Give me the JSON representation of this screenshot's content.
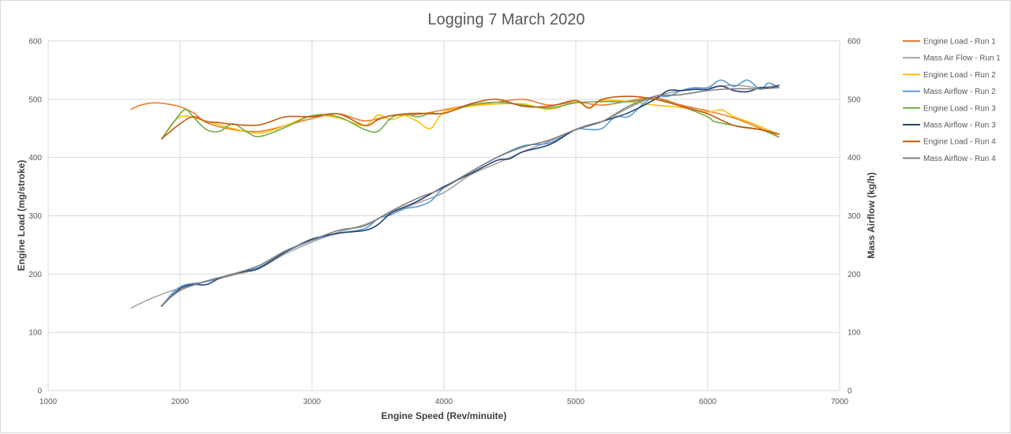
{
  "chart_data": {
    "type": "line",
    "title": "Logging 7 March 2020",
    "xlabel": "Engine Speed (Rev/minuite)",
    "ylabel": "Engine Load (mg/stroke)",
    "y2label": "Mass Airflow (kg/h)",
    "xlim": [
      1000,
      7000
    ],
    "ylim": [
      0,
      600
    ],
    "y2lim": [
      0,
      600
    ],
    "xticks": [
      "1000",
      "2000",
      "3000",
      "4000",
      "5000",
      "6000",
      "7000"
    ],
    "yticks": [
      "0",
      "100",
      "200",
      "300",
      "400",
      "500",
      "600"
    ],
    "y2ticks": [
      "0",
      "100",
      "200",
      "300",
      "400",
      "500",
      "600"
    ],
    "grid": true,
    "legend_position": "right",
    "series": [
      {
        "name": "Engine Load - Run 1",
        "color": "#ED7D31",
        "axis": "left",
        "x": [
          1630,
          1700,
          1800,
          1900,
          2000,
          2100,
          2200,
          2400,
          2600,
          2800,
          3000,
          3200,
          3400,
          3600,
          3800,
          4000,
          4200,
          4400,
          4600,
          4800,
          5000,
          5200,
          5400,
          5600,
          5800,
          6000,
          6200,
          6400,
          6520
        ],
        "y": [
          483,
          490,
          494,
          492,
          487,
          477,
          460,
          448,
          445,
          455,
          467,
          475,
          463,
          472,
          474,
          482,
          490,
          495,
          500,
          490,
          495,
          490,
          497,
          503,
          490,
          480,
          468,
          450,
          438
        ]
      },
      {
        "name": "Mass Air Flow - Run 1",
        "color": "#A5A5A5",
        "axis": "right",
        "x": [
          1630,
          1800,
          2000,
          2200,
          2400,
          2600,
          2800,
          3000,
          3200,
          3400,
          3600,
          3800,
          4000,
          4200,
          4400,
          4600,
          4800,
          5000,
          5200,
          5400,
          5600,
          5800,
          6000,
          6200,
          6400,
          6520
        ],
        "y": [
          142,
          160,
          176,
          187,
          198,
          210,
          235,
          255,
          272,
          285,
          305,
          322,
          340,
          370,
          390,
          410,
          428,
          448,
          462,
          485,
          505,
          515,
          520,
          524,
          520,
          524
        ]
      },
      {
        "name": "Engine Load - Run 2",
        "color": "#FFC000",
        "axis": "left",
        "x": [
          1860,
          2000,
          2200,
          2400,
          2600,
          2800,
          3000,
          3200,
          3400,
          3500,
          3600,
          3700,
          3800,
          3900,
          4000,
          4200,
          4400,
          4600,
          4800,
          5000,
          5100,
          5200,
          5400,
          5600,
          5800,
          6000,
          6100,
          6200,
          6300,
          6400,
          6480,
          6540
        ],
        "y": [
          432,
          470,
          462,
          450,
          442,
          455,
          472,
          468,
          455,
          473,
          465,
          472,
          462,
          450,
          478,
          488,
          492,
          492,
          483,
          495,
          486,
          498,
          496,
          490,
          486,
          478,
          482,
          470,
          462,
          453,
          445,
          440
        ]
      },
      {
        "name": "Mass Airflow - Run 2",
        "color": "#5B9BD5",
        "axis": "right",
        "x": [
          1860,
          2000,
          2200,
          2400,
          2600,
          2800,
          3000,
          3200,
          3400,
          3500,
          3600,
          3700,
          3800,
          3900,
          4000,
          4200,
          4400,
          4600,
          4800,
          5000,
          5100,
          5200,
          5300,
          5400,
          5500,
          5600,
          5700,
          5800,
          5900,
          6000,
          6100,
          6200,
          6300,
          6400,
          6460,
          6540
        ],
        "y": [
          145,
          178,
          187,
          200,
          212,
          238,
          258,
          270,
          278,
          295,
          302,
          312,
          316,
          325,
          348,
          375,
          400,
          420,
          425,
          448,
          448,
          450,
          470,
          470,
          490,
          505,
          505,
          515,
          520,
          520,
          533,
          522,
          533,
          517,
          528,
          520
        ]
      },
      {
        "name": "Engine Load - Run 3",
        "color": "#70AD47",
        "axis": "left",
        "x": [
          1860,
          2000,
          2050,
          2100,
          2200,
          2300,
          2400,
          2500,
          2600,
          2800,
          3000,
          3200,
          3400,
          3500,
          3600,
          3700,
          3800,
          3900,
          4000,
          4200,
          4400,
          4600,
          4800,
          5000,
          5200,
          5400,
          5600,
          5800,
          6000,
          6050,
          6200,
          6400,
          6540
        ],
        "y": [
          432,
          475,
          482,
          470,
          448,
          445,
          458,
          445,
          436,
          452,
          472,
          470,
          448,
          445,
          468,
          475,
          470,
          476,
          476,
          490,
          495,
          490,
          485,
          494,
          496,
          496,
          500,
          488,
          470,
          462,
          455,
          448,
          435
        ]
      },
      {
        "name": "Mass Airflow - Run 3",
        "color": "#264478",
        "axis": "right",
        "x": [
          1860,
          2000,
          2100,
          2200,
          2300,
          2400,
          2500,
          2600,
          2800,
          3000,
          3200,
          3400,
          3500,
          3600,
          3700,
          3800,
          4000,
          4200,
          4400,
          4500,
          4600,
          4800,
          5000,
          5200,
          5400,
          5600,
          5700,
          5800,
          5900,
          6000,
          6100,
          6200,
          6300,
          6400,
          6480,
          6540
        ],
        "y": [
          145,
          175,
          182,
          182,
          193,
          200,
          205,
          210,
          238,
          260,
          270,
          275,
          285,
          305,
          315,
          325,
          350,
          372,
          395,
          398,
          410,
          422,
          448,
          462,
          477,
          500,
          515,
          515,
          517,
          517,
          523,
          515,
          513,
          520,
          520,
          524
        ]
      },
      {
        "name": "Engine Load - Run 4",
        "color": "#C55A11",
        "axis": "left",
        "x": [
          1860,
          2000,
          2100,
          2200,
          2300,
          2400,
          2600,
          2800,
          3000,
          3200,
          3400,
          3500,
          3600,
          3800,
          4000,
          4200,
          4400,
          4600,
          4800,
          5000,
          5100,
          5200,
          5400,
          5600,
          5800,
          6000,
          6200,
          6400,
          6540
        ],
        "y": [
          432,
          458,
          470,
          462,
          460,
          457,
          456,
          470,
          470,
          475,
          455,
          465,
          472,
          476,
          476,
          492,
          500,
          488,
          488,
          498,
          485,
          500,
          505,
          500,
          488,
          475,
          455,
          448,
          440
        ]
      },
      {
        "name": "Mass Airflow - Run 4",
        "color": "#7F7F7F",
        "axis": "right",
        "x": [
          1860,
          2000,
          2200,
          2400,
          2600,
          2800,
          3000,
          3200,
          3400,
          3600,
          3800,
          4000,
          4200,
          4400,
          4600,
          4800,
          5000,
          5200,
          5400,
          5600,
          5800,
          6000,
          6200,
          6400,
          6540
        ],
        "y": [
          146,
          172,
          188,
          200,
          215,
          240,
          258,
          275,
          283,
          308,
          330,
          348,
          375,
          400,
          418,
          430,
          448,
          462,
          488,
          505,
          508,
          515,
          518,
          518,
          520
        ]
      }
    ]
  }
}
